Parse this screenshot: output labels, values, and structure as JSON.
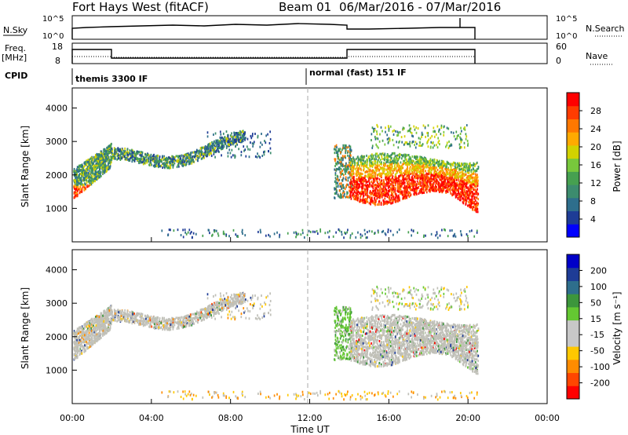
{
  "header": {
    "station": "Fort Hays West (fitACF)",
    "beam": "Beam 01",
    "date_range": "06/Mar/2016 - 07/Mar/2016"
  },
  "strip_panels": {
    "nsky": {
      "label": "N.Sky",
      "ticks_left": [
        "10^5",
        "10^0"
      ],
      "ticks_right": [
        "10^5",
        "10^0"
      ],
      "right_label": "N.Search"
    },
    "freq": {
      "label_line1": "Freq.",
      "label_line2": "[MHz]",
      "ticks_left": [
        "18",
        "8"
      ],
      "ticks_right": [
        "60",
        "0"
      ],
      "right_label": "Nave"
    },
    "cpid": {
      "label": "CPID",
      "mode1": "themis 3300 IF",
      "mode2": "normal (fast) 151 IF"
    }
  },
  "colors": {
    "power": [
      "#0000ff",
      "#1e3c96",
      "#2e6e8c",
      "#3c8c6e",
      "#46a050",
      "#78c83c",
      "#d2d200",
      "#ffaa00",
      "#ff7800",
      "#ff3c00",
      "#ff0000"
    ],
    "velocity": [
      "#ff0000",
      "#ff4600",
      "#ff8c00",
      "#ffc800",
      "#c8c8c8",
      "#c8c8c8",
      "#64c832",
      "#3c963c",
      "#2e6e8c",
      "#1e3c96",
      "#0000c8"
    ],
    "gray_data": "#c0c0b8"
  },
  "chart_data": [
    {
      "type": "heatmap",
      "name": "power",
      "ylabel": "Slant Range [km]",
      "yticks": [
        1000,
        2000,
        3000,
        4000
      ],
      "ylim": [
        0,
        4600
      ],
      "xlim_hours": [
        0,
        24
      ],
      "colorbar_label": "Power [dB]",
      "colorbar_ticks": [
        "4",
        "8",
        "12",
        "16",
        "20",
        "24",
        "28"
      ],
      "clim": [
        0,
        30
      ]
    },
    {
      "type": "heatmap",
      "name": "velocity",
      "ylabel": "Slant Range [km]",
      "yticks": [
        1000,
        2000,
        3000,
        4000
      ],
      "ylim": [
        0,
        4600
      ],
      "xlim_hours": [
        0,
        24
      ],
      "colorbar_label": "Velocity [m s⁻¹]",
      "colorbar_ticks": [
        "200",
        "100",
        "50",
        "15",
        "-15",
        "-50",
        "-100",
        "-200"
      ],
      "clim": [
        -250,
        250
      ]
    }
  ],
  "time_axis": {
    "label": "Time UT",
    "ticks": [
      "00:00",
      "04:00",
      "08:00",
      "12:00",
      "16:00",
      "20:00",
      "00:00"
    ],
    "tick_hours": [
      0,
      4,
      8,
      12,
      16,
      20,
      24
    ]
  }
}
